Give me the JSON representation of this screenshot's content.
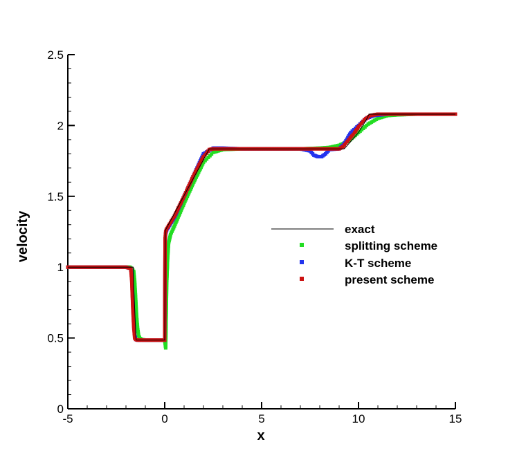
{
  "chart_data": {
    "type": "scatter",
    "title": "",
    "xlabel": "x",
    "ylabel": "velocity",
    "xlim": [
      -5,
      15
    ],
    "ylim": [
      0,
      2.5
    ],
    "x_ticks": [
      -5,
      0,
      5,
      10,
      15
    ],
    "y_ticks": [
      0,
      0.5,
      1,
      1.5,
      2,
      2.5
    ],
    "x_tick_labels": [
      "-5",
      "0",
      "5",
      "10",
      "15"
    ],
    "y_tick_labels": [
      "0",
      "0.5",
      "1",
      "1.5",
      "2",
      "2.5"
    ],
    "grid": false,
    "legend_position": "right-center",
    "series": [
      {
        "name": "exact",
        "kind": "line",
        "color": "#000000",
        "x": [
          -5,
          -1.62,
          -1.6,
          -1.48,
          -1.45,
          0.0,
          0.02,
          0.03,
          2.3,
          9.25,
          9.3,
          10.0,
          10.4,
          10.55,
          15
        ],
        "y": [
          1.0,
          1.0,
          0.86,
          0.49,
          0.485,
          0.485,
          1.1,
          1.26,
          1.835,
          1.835,
          1.84,
          1.95,
          2.04,
          2.08,
          2.08
        ]
      },
      {
        "name": "splitting scheme",
        "kind": "markers",
        "color": "#22dd22",
        "x": [
          -5,
          -4,
          -3,
          -2,
          -1.8,
          -1.7,
          -1.6,
          -1.55,
          -1.5,
          -1.45,
          -1.4,
          -1.35,
          -1.3,
          -1.2,
          -1.0,
          -0.5,
          0.0,
          0.05,
          0.1,
          0.15,
          0.2,
          0.25,
          0.3,
          0.5,
          1.0,
          1.5,
          2.0,
          2.5,
          3.0,
          4.0,
          5.0,
          6.0,
          7.0,
          8.0,
          8.5,
          9.0,
          9.5,
          10.0,
          10.5,
          11.0,
          11.5,
          12.0,
          13.0,
          14.0,
          15.0
        ],
        "y": [
          1.0,
          1.0,
          1.0,
          1.0,
          1.0,
          0.99,
          0.97,
          0.9,
          0.78,
          0.65,
          0.57,
          0.52,
          0.5,
          0.49,
          0.485,
          0.485,
          0.485,
          0.43,
          0.87,
          1.06,
          1.17,
          1.2,
          1.23,
          1.29,
          1.45,
          1.6,
          1.74,
          1.81,
          1.83,
          1.835,
          1.835,
          1.835,
          1.835,
          1.84,
          1.845,
          1.86,
          1.89,
          1.95,
          2.01,
          2.05,
          2.07,
          2.075,
          2.08,
          2.08,
          2.08
        ]
      },
      {
        "name": "K-T scheme",
        "kind": "markers",
        "color": "#2233ee",
        "x": [
          -5,
          -4,
          -3,
          -2,
          -1.75,
          -1.7,
          -1.65,
          -1.6,
          -1.55,
          -1.5,
          -1.4,
          -1.0,
          -0.5,
          0.0,
          0.02,
          0.05,
          0.1,
          0.5,
          1.0,
          1.5,
          2.0,
          2.5,
          3.0,
          4.0,
          5.0,
          6.0,
          7.0,
          7.5,
          7.7,
          7.9,
          8.1,
          8.3,
          8.5,
          9.0,
          9.3,
          9.6,
          10.0,
          10.4,
          10.8,
          11.5,
          12.0,
          13.0,
          14.0,
          15.0
        ],
        "y": [
          1.0,
          1.0,
          1.0,
          1.0,
          0.99,
          0.94,
          0.79,
          0.62,
          0.52,
          0.49,
          0.485,
          0.485,
          0.485,
          0.485,
          1.18,
          1.24,
          1.26,
          1.35,
          1.5,
          1.65,
          1.8,
          1.84,
          1.84,
          1.835,
          1.835,
          1.835,
          1.835,
          1.82,
          1.79,
          1.78,
          1.78,
          1.8,
          1.83,
          1.835,
          1.88,
          1.95,
          2.0,
          2.05,
          2.07,
          2.08,
          2.08,
          2.08,
          2.08,
          2.08
        ]
      },
      {
        "name": "present scheme",
        "kind": "markers",
        "color": "#cc1111",
        "x": [
          -5,
          -4,
          -3,
          -2,
          -1.75,
          -1.7,
          -1.65,
          -1.6,
          -1.55,
          -1.5,
          -1.4,
          -1.0,
          -0.5,
          0.0,
          0.02,
          0.05,
          0.1,
          0.5,
          1.0,
          1.5,
          2.0,
          2.3,
          2.5,
          3.0,
          4.0,
          5.0,
          6.0,
          7.0,
          8.0,
          9.0,
          9.2,
          9.5,
          9.8,
          10.0,
          10.3,
          10.6,
          11.0,
          11.5,
          12.0,
          13.0,
          14.0,
          15.0
        ],
        "y": [
          1.0,
          1.0,
          1.0,
          1.0,
          0.99,
          0.9,
          0.72,
          0.58,
          0.5,
          0.49,
          0.485,
          0.485,
          0.485,
          0.485,
          1.2,
          1.25,
          1.27,
          1.36,
          1.5,
          1.65,
          1.78,
          1.83,
          1.835,
          1.835,
          1.835,
          1.835,
          1.835,
          1.835,
          1.835,
          1.835,
          1.85,
          1.9,
          1.95,
          1.99,
          2.04,
          2.07,
          2.08,
          2.08,
          2.08,
          2.08,
          2.08,
          2.08
        ]
      }
    ]
  }
}
